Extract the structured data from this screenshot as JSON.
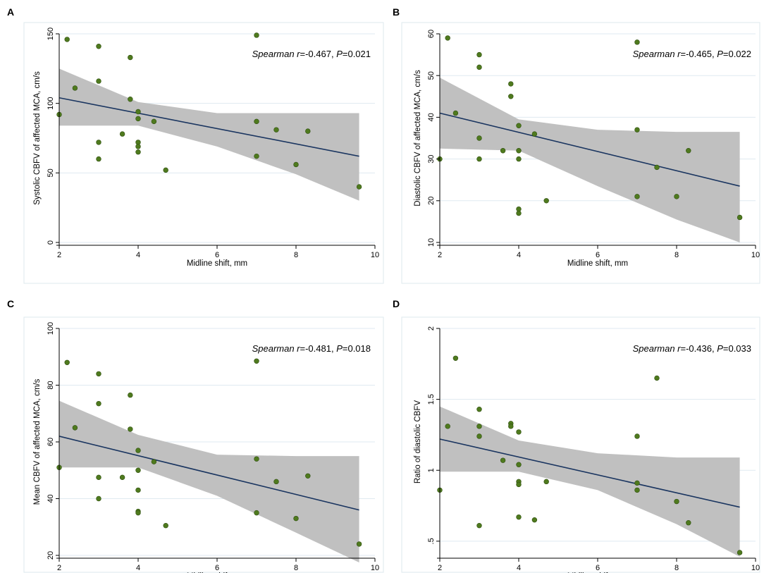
{
  "figure": {
    "panels": [
      {
        "letter": "A",
        "annotation": {
          "method": "Spearman",
          "r_label": "r",
          "r_value": "=-0.467, ",
          "p_label": "P",
          "p_value": "=0.021"
        }
      },
      {
        "letter": "B",
        "annotation": {
          "method": "Spearman",
          "r_label": "r",
          "r_value": "=-0.465, ",
          "p_label": "P",
          "p_value": "=0.022"
        }
      },
      {
        "letter": "C",
        "annotation": {
          "method": "Spearman",
          "r_label": "r",
          "r_value": "=-0.481, ",
          "p_label": "P",
          "p_value": "=0.018"
        }
      },
      {
        "letter": "D",
        "annotation": {
          "method": "Spearman",
          "r_label": "r",
          "r_value": "=-0.436, ",
          "p_label": "P",
          "p_value": "=0.033"
        }
      }
    ],
    "colors": {
      "point": "#4f7a1e",
      "fit_line": "#1a3560",
      "ci_band": "#c0c0c0",
      "grid": "#dfeaf0"
    }
  },
  "chart_data": [
    {
      "type": "scatter",
      "title": "",
      "xlabel": "Midline shift, mm",
      "ylabel": "Systolic CBFV of affected MCA, cm/s",
      "xlim": [
        2,
        10
      ],
      "ylim": [
        0,
        150
      ],
      "xticks": [
        2,
        4,
        6,
        8,
        10
      ],
      "xtick_labels": [
        "2",
        "4",
        "6",
        "8",
        "10"
      ],
      "yticks": [
        0,
        50,
        100,
        150
      ],
      "ytick_labels": [
        "0",
        "50",
        "100",
        "150"
      ],
      "grid": true,
      "points": {
        "x": [
          2.0,
          2.2,
          2.4,
          3.0,
          3.0,
          3.0,
          3.0,
          3.6,
          3.8,
          3.8,
          4.0,
          4.0,
          4.0,
          4.0,
          4.0,
          4.4,
          4.7,
          7.0,
          7.0,
          7.0,
          7.5,
          8.0,
          8.3,
          9.6
        ],
        "y": [
          92,
          146,
          111,
          141,
          116,
          72,
          60,
          78,
          133,
          103,
          94,
          89,
          72,
          69,
          65,
          87,
          52,
          149,
          87,
          62,
          81,
          56,
          80,
          40
        ]
      },
      "fit": {
        "x": [
          2.0,
          9.6
        ],
        "y": [
          104,
          62
        ]
      },
      "ci": {
        "x": [
          2.0,
          4.0,
          6.0,
          8.0,
          9.6
        ],
        "lower": [
          84,
          84,
          69,
          49,
          30
        ],
        "upper": [
          125,
          101,
          93,
          93,
          93
        ]
      }
    },
    {
      "type": "scatter",
      "title": "",
      "xlabel": "Midline shift, mm",
      "ylabel": "Diastolic CBFV of affected MCA, cm/s",
      "xlim": [
        2,
        10
      ],
      "ylim": [
        10,
        60
      ],
      "xticks": [
        2,
        4,
        6,
        8,
        10
      ],
      "xtick_labels": [
        "2",
        "4",
        "6",
        "8",
        "10"
      ],
      "yticks": [
        10,
        20,
        30,
        40,
        50,
        60
      ],
      "ytick_labels": [
        "10",
        "20",
        "30",
        "40",
        "50",
        "60"
      ],
      "grid": true,
      "points": {
        "x": [
          2.0,
          2.2,
          2.4,
          3.0,
          3.0,
          3.0,
          3.0,
          3.6,
          3.8,
          3.8,
          4.0,
          4.0,
          4.0,
          4.0,
          4.0,
          4.4,
          4.7,
          7.0,
          7.0,
          7.0,
          7.5,
          8.0,
          8.3,
          9.6
        ],
        "y": [
          30,
          59,
          41,
          55,
          52,
          35,
          30,
          32,
          48,
          45,
          38,
          32,
          30,
          18,
          17,
          36,
          20,
          58,
          37,
          21,
          28,
          21,
          32,
          16
        ]
      },
      "fit": {
        "x": [
          2.0,
          9.6
        ],
        "y": [
          41,
          23.5
        ]
      },
      "ci": {
        "x": [
          2.0,
          4.0,
          6.0,
          8.0,
          9.6
        ],
        "lower": [
          32.5,
          32,
          23.5,
          15.5,
          10
        ]
      },
      "ci_upper": [
        49.5,
        39.5,
        37,
        36.5,
        36.5
      ]
    },
    {
      "type": "scatter",
      "title": "",
      "xlabel": "Midline shift, mm",
      "ylabel": "Mean CBFV of affected MCA, cm/s",
      "xlim": [
        2,
        10
      ],
      "ylim": [
        20,
        100
      ],
      "xticks": [
        2,
        4,
        6,
        8,
        10
      ],
      "xtick_labels": [
        "2",
        "4",
        "6",
        "8",
        "10"
      ],
      "yticks": [
        20,
        40,
        60,
        80,
        100
      ],
      "ytick_labels": [
        "20",
        "40",
        "60",
        "80",
        "100"
      ],
      "grid": true,
      "points": {
        "x": [
          2.0,
          2.2,
          2.4,
          3.0,
          3.0,
          3.0,
          3.0,
          3.6,
          3.8,
          3.8,
          4.0,
          4.0,
          4.0,
          4.0,
          4.0,
          4.4,
          4.7,
          7.0,
          7.0,
          7.0,
          7.5,
          8.0,
          8.3,
          9.6
        ],
        "y": [
          51,
          88,
          65,
          84,
          73.5,
          47.5,
          40,
          47.5,
          76.5,
          64.5,
          57,
          50,
          43,
          35.5,
          35,
          53,
          30.5,
          88.5,
          54,
          35,
          46,
          33,
          48,
          24
        ]
      },
      "fit": {
        "x": [
          2.0,
          9.6
        ],
        "y": [
          62,
          36
        ]
      },
      "ci": {
        "x": [
          2.0,
          4.0,
          6.0,
          8.0,
          9.6
        ],
        "lower": [
          51,
          51,
          41,
          28,
          17.5
        ]
      },
      "ci_upper": [
        74.5,
        62.5,
        55.5,
        55,
        55
      ]
    },
    {
      "type": "scatter",
      "title": "",
      "xlabel": "Midline shift, mm",
      "ylabel": "Ratio of diastolic CBFV",
      "xlim": [
        2,
        10
      ],
      "ylim": [
        0.4,
        2.0
      ],
      "xticks": [
        2,
        4,
        6,
        8,
        10
      ],
      "xtick_labels": [
        "2",
        "4",
        "6",
        "8",
        "10"
      ],
      "yticks": [
        0.5,
        1.0,
        1.5,
        2.0
      ],
      "ytick_labels": [
        ".5",
        "1",
        "1.5",
        "2"
      ],
      "grid": true,
      "points": {
        "x": [
          2.0,
          2.2,
          2.4,
          3.0,
          3.0,
          3.0,
          3.0,
          3.6,
          3.8,
          3.8,
          4.0,
          4.0,
          4.0,
          4.0,
          4.0,
          4.4,
          4.7,
          7.0,
          7.0,
          7.0,
          7.5,
          8.0,
          8.3,
          9.6
        ],
        "y": [
          0.86,
          1.31,
          1.79,
          1.43,
          1.31,
          1.24,
          0.61,
          1.07,
          1.33,
          1.31,
          1.27,
          1.04,
          0.92,
          0.9,
          0.67,
          0.65,
          0.92,
          1.24,
          0.91,
          0.86,
          1.65,
          0.78,
          0.63,
          0.42
        ]
      },
      "fit": {
        "x": [
          2.0,
          9.6
        ],
        "y": [
          1.22,
          0.74
        ]
      },
      "ci": {
        "x": [
          2.0,
          4.0,
          6.0,
          8.0,
          9.6
        ],
        "lower": [
          0.99,
          0.99,
          0.86,
          0.62,
          0.39
        ]
      },
      "ci_upper": [
        1.45,
        1.21,
        1.12,
        1.09,
        1.09
      ]
    }
  ]
}
